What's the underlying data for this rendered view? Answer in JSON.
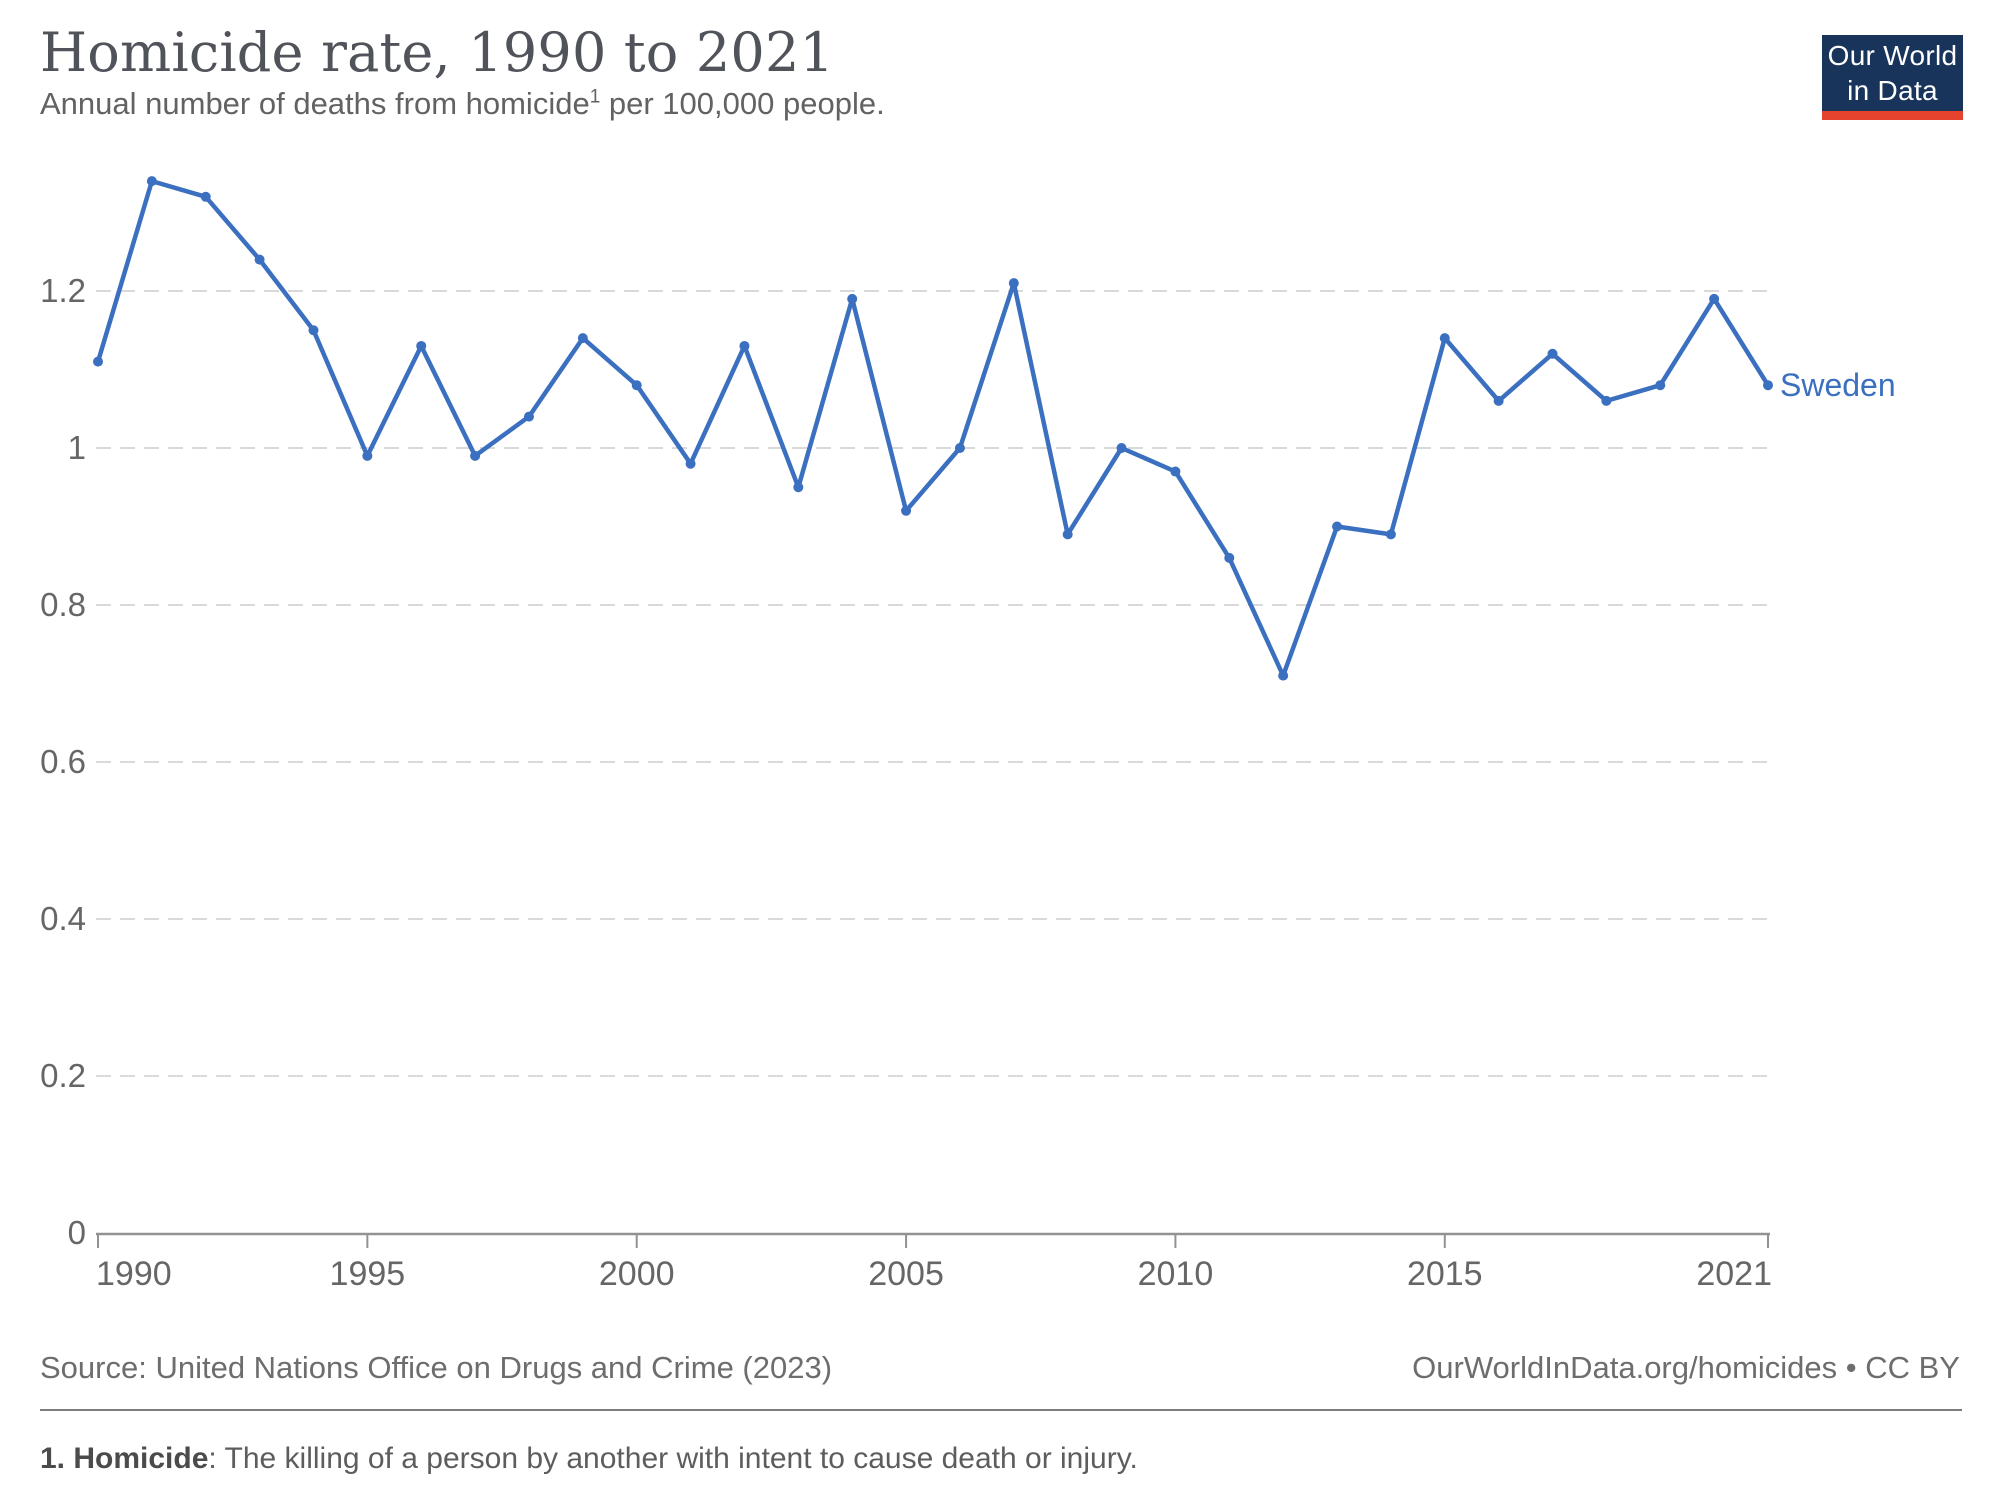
{
  "header": {
    "title": "Homicide rate, 1990 to 2021",
    "subtitle_prefix": "Annual number of deaths from homicide",
    "subtitle_superscript": "1",
    "subtitle_suffix": " per 100,000 people.",
    "logo_line1": "Our World",
    "logo_line2": "in Data"
  },
  "chart_data": {
    "type": "line",
    "title": "Homicide rate, 1990 to 2021",
    "xlabel": "",
    "ylabel": "",
    "xlim": [
      1990,
      2021
    ],
    "ylim": [
      0,
      1.2
    ],
    "grid": "horizontal-dashed",
    "legend_position": "end-of-line-label",
    "x_ticks": [
      1990,
      1995,
      2000,
      2005,
      2010,
      2015,
      2021
    ],
    "x_tick_labels": [
      "1990",
      "1995",
      "2000",
      "2005",
      "2010",
      "2015",
      "2021"
    ],
    "y_ticks": [
      0,
      0.2,
      0.4,
      0.6,
      0.8,
      1,
      1.2
    ],
    "y_tick_labels": [
      "0",
      "0.2",
      "0.4",
      "0.6",
      "0.8",
      "1",
      "1.2"
    ],
    "series": [
      {
        "name": "Sweden",
        "end_label": "Sweden",
        "color": "#3b6fbf",
        "x": [
          1990,
          1991,
          1992,
          1993,
          1994,
          1995,
          1996,
          1997,
          1998,
          1999,
          2000,
          2001,
          2002,
          2003,
          2004,
          2005,
          2006,
          2007,
          2008,
          2009,
          2010,
          2011,
          2012,
          2013,
          2014,
          2015,
          2016,
          2017,
          2018,
          2019,
          2020,
          2021
        ],
        "values": [
          1.11,
          1.34,
          1.32,
          1.24,
          1.15,
          0.99,
          1.13,
          0.99,
          1.04,
          1.14,
          1.08,
          0.98,
          1.13,
          0.95,
          1.19,
          0.92,
          1.0,
          1.21,
          0.89,
          1.0,
          0.97,
          0.86,
          0.71,
          0.9,
          0.89,
          1.14,
          1.06,
          1.12,
          1.06,
          1.08,
          1.19,
          1.08
        ]
      }
    ]
  },
  "footer": {
    "source_text": "Source: United Nations Office on Drugs and Crime (2023)",
    "link_text": "OurWorldInData.org/homicides • CC BY",
    "note_label": "1. Homicide",
    "note_text": ": The killing of a person by another with intent to cause death or injury."
  },
  "colors": {
    "line": "#3b6fbf",
    "gridline": "#d9d9d9",
    "axis": "#929292",
    "tick_label": "#666666",
    "logo_navy": "#18345a",
    "logo_red": "#e5432e"
  }
}
